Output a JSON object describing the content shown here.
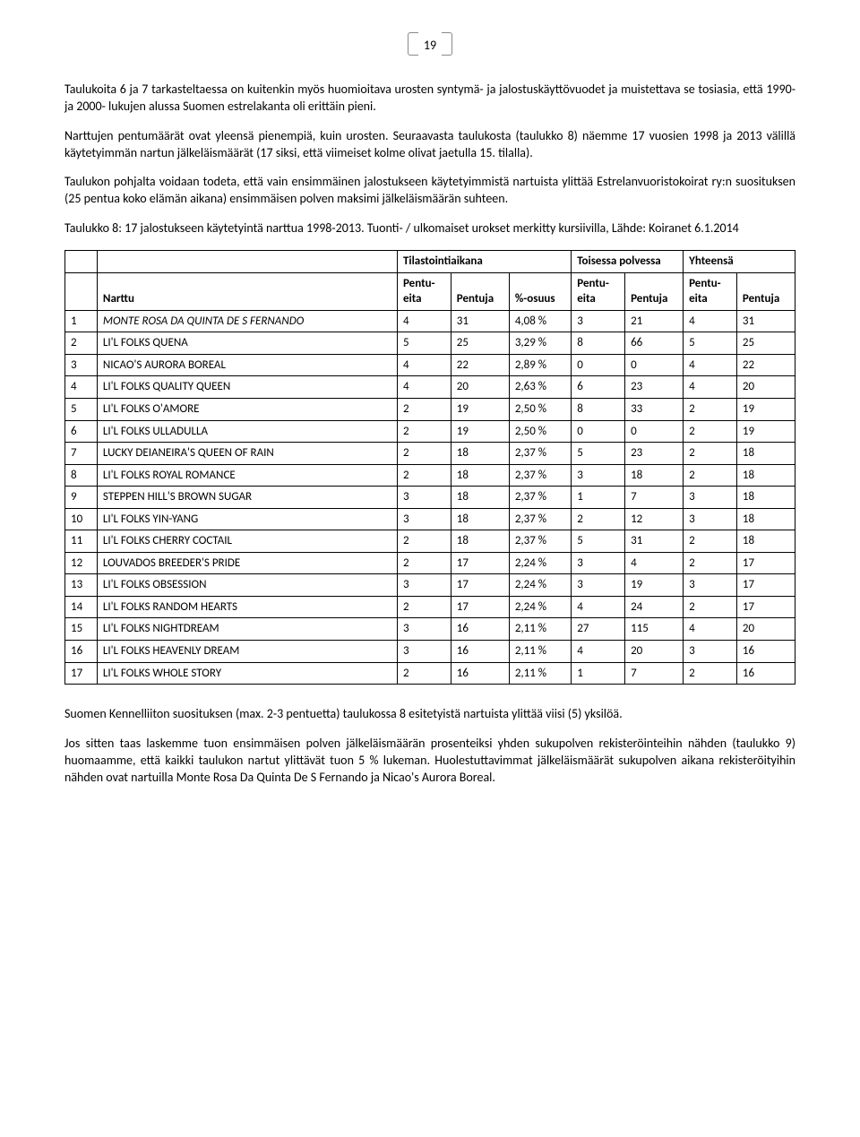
{
  "page_number": "19",
  "paragraphs": {
    "p1": "Taulukoita 6 ja 7 tarkasteltaessa on kuitenkin myös huomioitava urosten syntymä- ja jalostuskäyttövuodet ja muistettava se tosiasia, että 1990- ja 2000- lukujen alussa Suomen estrelakanta oli erittäin pieni.",
    "p2": "Narttujen pentumäärät ovat yleensä pienempiä, kuin urosten. Seuraavasta taulukosta (taulukko 8) näemme 17 vuosien 1998 ja 2013 välillä käytetyimmän nartun jälkeläismäärät (17 siksi, että viimeiset kolme olivat jaetulla 15. tilalla).",
    "p3": "Taulukon pohjalta voidaan todeta, että vain ensimmäinen jalostukseen käytetyimmistä nartuista ylittää Estrelanvuoristokoirat ry:n suosituksen (25 pentua koko elämän aikana) ensimmäisen polven maksimi jälkeläismäärän suhteen.",
    "p4": "Taulukko 8: 17 jalostukseen käytetyintä narttua 1998-2013. Tuonti- / ulkomaiset urokset merkitty kursiivilla, Lähde: Koiranet 6.1.2014",
    "p5": "Suomen Kennelliiton suosituksen (max. 2-3 pentuetta) taulukossa 8 esitetyistä nartuista ylittää viisi (5) yksilöä.",
    "p6": "Jos sitten taas laskemme tuon ensimmäisen polven jälkeläismäärän prosenteiksi yhden sukupolven rekisteröinteihin nähden (taulukko 9) huomaamme, että kaikki taulukon nartut ylittävät tuon 5 % lukeman. Huolestuttavimmat jälkeläismäärät sukupolven aikana rekisteröityihin nähden ovat nartuilla Monte Rosa Da Quinta De S Fernando ja Nicao's Aurora Boreal."
  },
  "table": {
    "group_headers": {
      "g1": "Tilastointiaikana",
      "g2": "Toisessa polvessa",
      "g3": "Yhteensä"
    },
    "headers": {
      "narttu": "Narttu",
      "pentueita": "Pentu-eita",
      "pentuja": "Pentuja",
      "osuus": "%-osuus"
    },
    "rows": [
      {
        "idx": "1",
        "name": "MONTE ROSA DA QUINTA DE S FERNANDO",
        "a": "4",
        "b": "31",
        "c": "4,08 %",
        "d": "3",
        "e": "21",
        "f": "4",
        "g": "31",
        "italic": true
      },
      {
        "idx": "2",
        "name": "LI'L FOLKS QUENA",
        "a": "5",
        "b": "25",
        "c": "3,29 %",
        "d": "8",
        "e": "66",
        "f": "5",
        "g": "25"
      },
      {
        "idx": "3",
        "name": "NICAO'S AURORA BOREAL",
        "a": "4",
        "b": "22",
        "c": "2,89 %",
        "d": "0",
        "e": "0",
        "f": "4",
        "g": "22"
      },
      {
        "idx": "4",
        "name": "LI'L FOLKS QUALITY QUEEN",
        "a": "4",
        "b": "20",
        "c": "2,63 %",
        "d": "6",
        "e": "23",
        "f": "4",
        "g": "20"
      },
      {
        "idx": "5",
        "name": "LI'L FOLKS O'AMORE",
        "a": "2",
        "b": "19",
        "c": "2,50 %",
        "d": "8",
        "e": "33",
        "f": "2",
        "g": "19"
      },
      {
        "idx": "6",
        "name": "LI'L FOLKS ULLADULLA",
        "a": "2",
        "b": "19",
        "c": "2,50 %",
        "d": "0",
        "e": "0",
        "f": "2",
        "g": "19"
      },
      {
        "idx": "7",
        "name": "LUCKY DEIANEIRA'S QUEEN OF RAIN",
        "a": "2",
        "b": "18",
        "c": "2,37 %",
        "d": "5",
        "e": "23",
        "f": "2",
        "g": "18"
      },
      {
        "idx": "8",
        "name": "LI'L FOLKS ROYAL ROMANCE",
        "a": "2",
        "b": "18",
        "c": "2,37 %",
        "d": "3",
        "e": "18",
        "f": "2",
        "g": "18"
      },
      {
        "idx": "9",
        "name": "STEPPEN HILL'S BROWN SUGAR",
        "a": "3",
        "b": "18",
        "c": "2,37 %",
        "d": "1",
        "e": "7",
        "f": "3",
        "g": "18"
      },
      {
        "idx": "10",
        "name": "LI'L FOLKS YIN-YANG",
        "a": "3",
        "b": "18",
        "c": "2,37 %",
        "d": "2",
        "e": "12",
        "f": "3",
        "g": "18"
      },
      {
        "idx": "11",
        "name": "LI'L FOLKS CHERRY COCTAIL",
        "a": "2",
        "b": "18",
        "c": "2,37 %",
        "d": "5",
        "e": "31",
        "f": "2",
        "g": "18"
      },
      {
        "idx": "12",
        "name": "LOUVADOS BREEDER'S PRIDE",
        "a": "2",
        "b": "17",
        "c": "2,24 %",
        "d": "3",
        "e": "4",
        "f": "2",
        "g": "17"
      },
      {
        "idx": "13",
        "name": "LI'L FOLKS OBSESSION",
        "a": "3",
        "b": "17",
        "c": "2,24 %",
        "d": "3",
        "e": "19",
        "f": "3",
        "g": "17"
      },
      {
        "idx": "14",
        "name": "LI'L FOLKS RANDOM HEARTS",
        "a": "2",
        "b": "17",
        "c": "2,24 %",
        "d": "4",
        "e": "24",
        "f": "2",
        "g": "17"
      },
      {
        "idx": "15",
        "name": "LI'L FOLKS NIGHTDREAM",
        "a": "3",
        "b": "16",
        "c": "2,11 %",
        "d": "27",
        "e": "115",
        "f": "4",
        "g": "20"
      },
      {
        "idx": "16",
        "name": "LI'L FOLKS HEAVENLY DREAM",
        "a": "3",
        "b": "16",
        "c": "2,11 %",
        "d": "4",
        "e": "20",
        "f": "3",
        "g": "16"
      },
      {
        "idx": "17",
        "name": "LI'L FOLKS WHOLE STORY",
        "a": "2",
        "b": "16",
        "c": "2,11 %",
        "d": "1",
        "e": "7",
        "f": "2",
        "g": "16"
      }
    ]
  }
}
